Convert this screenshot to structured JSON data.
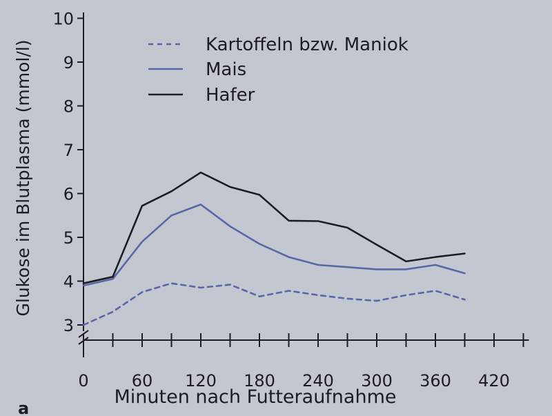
{
  "figure_label": "a",
  "colors": {
    "page": "#c3c8d0",
    "axis": "#1c1c22",
    "mais": "#5a66a8",
    "hafer": "#1c1c22",
    "kartoffeln": "#5a66a8"
  },
  "chart_data": {
    "type": "line",
    "title": "",
    "xlabel": "Minuten nach Futteraufnahme",
    "ylabel": "Glukose im Blutplasma (mmol/l)",
    "xlim": [
      0,
      450
    ],
    "ylim": [
      3,
      10
    ],
    "y_axis_break": true,
    "x_ticks": [
      0,
      60,
      120,
      180,
      240,
      300,
      360,
      420
    ],
    "x_minor_ticks": [
      30,
      90,
      150,
      210,
      270,
      330,
      390,
      450
    ],
    "y_ticks": [
      3,
      4,
      5,
      6,
      7,
      8,
      9,
      10
    ],
    "x_tick_labels": [
      "0",
      "60",
      "120",
      "180",
      "240",
      "300",
      "360",
      "420"
    ],
    "y_tick_labels": [
      "3",
      "4",
      "5",
      "6",
      "7",
      "8",
      "9",
      "10"
    ],
    "legend_position": "top-center",
    "series": [
      {
        "name": "Kartoffeln bzw. Maniok",
        "style": "dashed",
        "color_key": "kartoffeln",
        "x": [
          0,
          30,
          60,
          90,
          120,
          150,
          180,
          210,
          240,
          270,
          300,
          330,
          360,
          390
        ],
        "y": [
          3.0,
          3.3,
          3.75,
          3.95,
          3.85,
          3.92,
          3.65,
          3.78,
          3.68,
          3.6,
          3.55,
          3.68,
          3.78,
          3.58
        ]
      },
      {
        "name": "Mais",
        "style": "solid",
        "color_key": "mais",
        "x": [
          0,
          30,
          60,
          90,
          120,
          150,
          180,
          210,
          240,
          270,
          300,
          330,
          360,
          390
        ],
        "y": [
          3.9,
          4.05,
          4.9,
          5.5,
          5.75,
          5.25,
          4.85,
          4.55,
          4.37,
          4.32,
          4.27,
          4.27,
          4.37,
          4.18
        ]
      },
      {
        "name": "Hafer",
        "style": "solid",
        "color_key": "hafer",
        "x": [
          0,
          30,
          60,
          90,
          120,
          150,
          180,
          210,
          240,
          270,
          300,
          330,
          360,
          390
        ],
        "y": [
          3.95,
          4.1,
          5.72,
          6.05,
          6.48,
          6.15,
          5.97,
          5.38,
          5.37,
          5.22,
          4.83,
          4.45,
          4.55,
          4.63
        ]
      }
    ]
  }
}
